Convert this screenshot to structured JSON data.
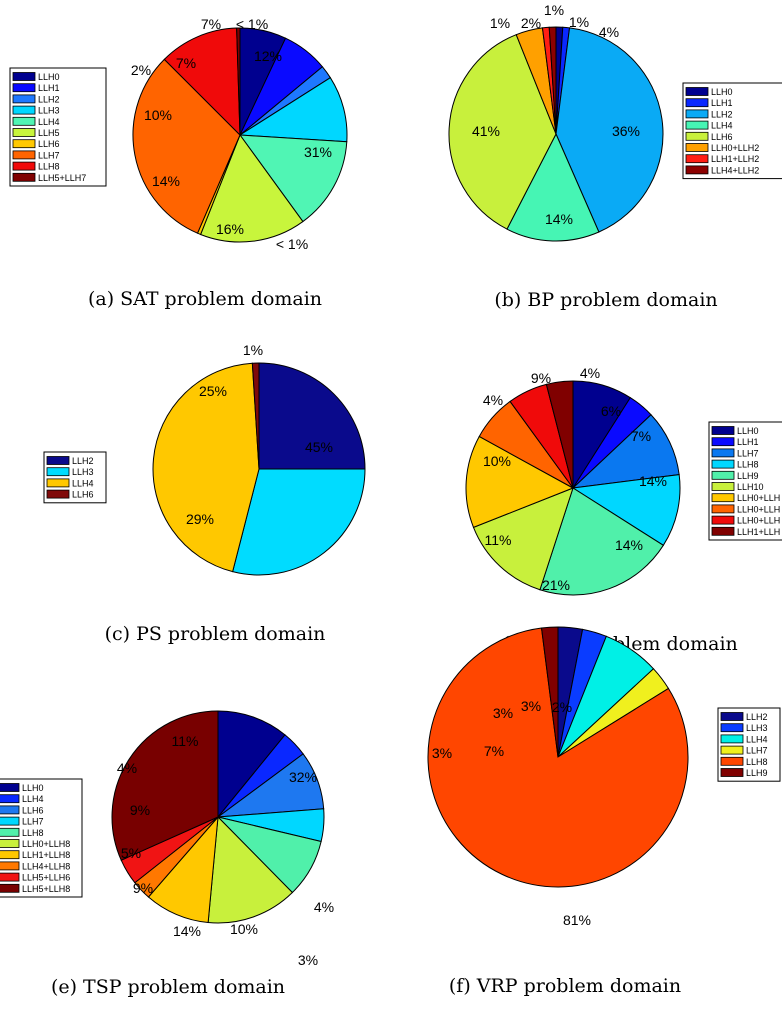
{
  "colors": {
    "LLH0": "#00008f",
    "LLH1": "#0000ff",
    "LLH2": "#0a6ef5",
    "LLH3": "#00ccff",
    "LLH4": "#4dffb3",
    "LLH5": "#c8ff3c",
    "LLH6": "#ffc800",
    "LLH7": "#ff6a00",
    "LLH8": "#f50a0a",
    "LLH9": "#800000",
    "outline": "#000000"
  },
  "chart_data": [
    {
      "type": "pie",
      "caption": "(a) SAT problem domain",
      "legend_position": "left",
      "slices": [
        {
          "name": "LLH0",
          "value": 7,
          "label": "7%",
          "color": "#00008f"
        },
        {
          "name": "LLH1",
          "value": 7,
          "label": "7%",
          "color": "#0a0aff"
        },
        {
          "name": "LLH2",
          "value": 2,
          "label": "2%",
          "color": "#1e78ff"
        },
        {
          "name": "LLH3",
          "value": 10,
          "label": "10%",
          "color": "#00d7ff"
        },
        {
          "name": "LLH4",
          "value": 14,
          "label": "14%",
          "color": "#50f5b4"
        },
        {
          "name": "LLH5",
          "value": 16,
          "label": "16%",
          "color": "#c8f53c"
        },
        {
          "name": "LLH6",
          "value": 0.5,
          "label": "< 1%",
          "color": "#ffc800"
        },
        {
          "name": "LLH7",
          "value": 31,
          "label": "31%",
          "color": "#ff6400"
        },
        {
          "name": "LLH8",
          "value": 12,
          "label": "12%",
          "color": "#f00a0a"
        },
        {
          "name": "LLH5+LLH7",
          "value": 0.5,
          "label": "< 1%",
          "color": "#800000"
        }
      ]
    },
    {
      "type": "pie",
      "caption": "(b) BP problem domain",
      "legend_position": "right",
      "slices": [
        {
          "name": "LLH0",
          "value": 1,
          "label": "1%",
          "color": "#00008f"
        },
        {
          "name": "LLH1",
          "value": 1,
          "label": "",
          "color": "#0a28ff"
        },
        {
          "name": "LLH2",
          "value": 41,
          "label": "41%",
          "color": "#0aaaf5"
        },
        {
          "name": "LLH4",
          "value": 14,
          "label": "14%",
          "color": "#46f5b4"
        },
        {
          "name": "LLH6",
          "value": 36,
          "label": "36%",
          "color": "#c8f03c"
        },
        {
          "name": "LLH0+LLH2",
          "value": 4,
          "label": "4%",
          "color": "#ffa000"
        },
        {
          "name": "LLH1+LLH2",
          "value": 1,
          "label": "1%",
          "color": "#ff1e14"
        },
        {
          "name": "LLH4+LLH2",
          "value": 1,
          "label": "1%",
          "color": "#8c0000"
        }
      ],
      "extra_labels": [
        "2%"
      ]
    },
    {
      "type": "pie",
      "caption": "(c) PS problem domain",
      "legend_position": "left",
      "slices": [
        {
          "name": "LLH2",
          "value": 25,
          "label": "25%",
          "color": "#0a0a8c"
        },
        {
          "name": "LLH3",
          "value": 29,
          "label": "29%",
          "color": "#00dcff"
        },
        {
          "name": "LLH4",
          "value": 45,
          "label": "45%",
          "color": "#ffc800"
        },
        {
          "name": "LLH6",
          "value": 1,
          "label": "1%",
          "color": "#800a0a"
        }
      ]
    },
    {
      "type": "pie",
      "caption": "(d) PFS problem domain",
      "legend_position": "right",
      "slices": [
        {
          "name": "LLH0",
          "value": 9,
          "label": "9%",
          "color": "#00008f"
        },
        {
          "name": "LLH1",
          "value": 4,
          "label": "4%",
          "color": "#0a0aff"
        },
        {
          "name": "LLH7",
          "value": 10,
          "label": "10%",
          "color": "#0a78f0"
        },
        {
          "name": "LLH8",
          "value": 11,
          "label": "11%",
          "color": "#00d7ff"
        },
        {
          "name": "LLH9",
          "value": 21,
          "label": "21%",
          "color": "#50f0aa"
        },
        {
          "name": "LLH10",
          "value": 14,
          "label": "14%",
          "color": "#c8f03c"
        },
        {
          "name": "LLH0+LLH",
          "value": 14,
          "label": "14%",
          "color": "#ffc800"
        },
        {
          "name": "LLH0+LLH",
          "value": 7,
          "label": "7%",
          "color": "#ff6400"
        },
        {
          "name": "LLH0+LLH",
          "value": 6,
          "label": "6%",
          "color": "#f00a0a"
        },
        {
          "name": "LLH1+LLH",
          "value": 4,
          "label": "4%",
          "color": "#800000"
        }
      ]
    },
    {
      "type": "pie",
      "caption": "(e) TSP problem domain",
      "legend_position": "left",
      "slices": [
        {
          "name": "LLH0",
          "value": 11,
          "label": "11%",
          "color": "#00008f"
        },
        {
          "name": "LLH4",
          "value": 4,
          "label": "4%",
          "color": "#0a28ff"
        },
        {
          "name": "LLH6",
          "value": 9,
          "label": "9%",
          "color": "#1e78f0"
        },
        {
          "name": "LLH7",
          "value": 5,
          "label": "5%",
          "color": "#00d7ff"
        },
        {
          "name": "LLH8",
          "value": 9,
          "label": "9%",
          "color": "#50f0aa"
        },
        {
          "name": "LLH0+LLH8",
          "value": 14,
          "label": "14%",
          "color": "#c8f03c"
        },
        {
          "name": "LLH1+LLH8",
          "value": 10,
          "label": "10%",
          "color": "#ffc800"
        },
        {
          "name": "LLH4+LLH8",
          "value": 3,
          "label": "3%",
          "color": "#ff7800"
        },
        {
          "name": "LLH5+LLH6",
          "value": 4,
          "label": "4%",
          "color": "#f01414"
        },
        {
          "name": "LLH5+LLH8",
          "value": 32,
          "label": "32%",
          "color": "#780000"
        }
      ]
    },
    {
      "type": "pie",
      "caption": "(f) VRP problem domain",
      "legend_position": "right",
      "slices": [
        {
          "name": "LLH2",
          "value": 3,
          "label": "3%",
          "color": "#0a0a8c"
        },
        {
          "name": "LLH3",
          "value": 3,
          "label": "3%",
          "color": "#0a3cff"
        },
        {
          "name": "LLH4",
          "value": 7,
          "label": "7%",
          "color": "#00f0e6"
        },
        {
          "name": "LLH7",
          "value": 3,
          "label": "3%",
          "color": "#f0f01e"
        },
        {
          "name": "LLH8",
          "value": 81,
          "label": "81%",
          "color": "#ff4600"
        },
        {
          "name": "LLH9",
          "value": 2,
          "label": "2%",
          "color": "#800000"
        }
      ]
    }
  ]
}
